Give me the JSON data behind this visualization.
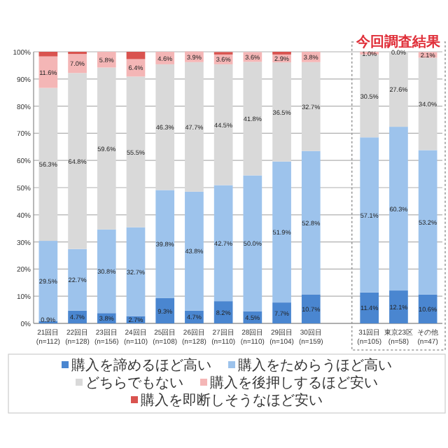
{
  "chart_data": {
    "type": "bar",
    "stacked": true,
    "categories": [
      "21回目 (n=112)",
      "22回目 (n=128)",
      "23回目 (n=156)",
      "24回目 (n=110)",
      "25回目 (n=108)",
      "26回目 (n=128)",
      "27回目 (n=110)",
      "28回目 (n=110)",
      "29回目 (n=104)",
      "30回目 (n=159)",
      null,
      "31回目 (n=105)",
      "東京23区 (n=58)",
      "その他 (n=47)"
    ],
    "series": [
      {
        "name": "購入を諦めるほど高い",
        "color": "#4a86d0",
        "values": [
          0.9,
          4.7,
          3.8,
          2.7,
          9.3,
          4.7,
          8.2,
          4.5,
          7.7,
          10.7,
          null,
          11.4,
          12.1,
          10.6
        ],
        "value_labels": [
          "0.9%",
          "4.7%",
          "3.8%",
          "2.7%",
          "9.3%",
          "4.7%",
          "8.2%",
          "4.5%",
          "7.7%",
          "10.7%",
          null,
          "11.4%",
          "12.1%",
          "10.6%"
        ]
      },
      {
        "name": "購入をためらうほど高い",
        "color": "#9dc3ec",
        "values": [
          29.5,
          22.7,
          30.8,
          32.7,
          39.8,
          43.8,
          42.7,
          50.0,
          51.9,
          52.8,
          null,
          57.1,
          60.3,
          53.2
        ],
        "value_labels": [
          "29.5%",
          "22.7%",
          "30.8%",
          "32.7%",
          "39.8%",
          "43.8%",
          "42.7%",
          "50.0%",
          "51.9%",
          "52.8%",
          null,
          "57.1%",
          "60.3%",
          "53.2%"
        ]
      },
      {
        "name": "どちらでもない",
        "color": "#d9d9d9",
        "values": [
          56.3,
          64.8,
          59.6,
          55.5,
          46.3,
          47.7,
          44.5,
          41.8,
          36.5,
          32.7,
          null,
          30.5,
          27.6,
          34.0
        ],
        "value_labels": [
          "56.3%",
          "64.8%",
          "59.6%",
          "55.5%",
          "46.3%",
          "47.7%",
          "44.5%",
          "41.8%",
          "36.5%",
          "32.7%",
          null,
          "30.5%",
          "27.6%",
          "34.0%"
        ]
      },
      {
        "name": "購入を後押しするほど安い",
        "color": "#f4b6b6",
        "values": [
          11.6,
          7.0,
          5.8,
          6.4,
          4.6,
          3.9,
          3.6,
          3.6,
          2.9,
          3.8,
          null,
          1.0,
          0.0,
          2.1
        ],
        "value_labels": [
          "11.6%",
          "7.0%",
          "5.8%",
          "6.4%",
          "4.6%",
          "3.9%",
          "3.6%",
          "3.6%",
          "2.9%",
          "3.8%",
          null,
          "1.0%",
          "0.0%",
          "2.1%"
        ]
      },
      {
        "name": "購入を即断しそうなほど安い",
        "color": "#d9534f",
        "values": [
          1.7,
          0.8,
          0.0,
          2.7,
          0.0,
          0.0,
          0.9,
          0.0,
          1.0,
          0.0,
          null,
          0.0,
          0.0,
          0.0
        ]
      }
    ],
    "ylim": [
      0,
      100
    ],
    "yticks": [
      {
        "value": 0,
        "label": "0%"
      },
      {
        "value": 10,
        "label": "10%"
      },
      {
        "value": 20,
        "label": "20%"
      },
      {
        "value": 30,
        "label": "30%"
      },
      {
        "value": 40,
        "label": "40%"
      },
      {
        "value": 50,
        "label": "50%"
      },
      {
        "value": 60,
        "label": "60%"
      },
      {
        "value": 70,
        "label": "70%"
      },
      {
        "value": 80,
        "label": "80%"
      },
      {
        "value": 90,
        "label": "90%"
      },
      {
        "value": 100,
        "label": "100%"
      }
    ],
    "grid": "y",
    "legend": "bottom",
    "annotations": [
      "今回調査結果"
    ]
  }
}
